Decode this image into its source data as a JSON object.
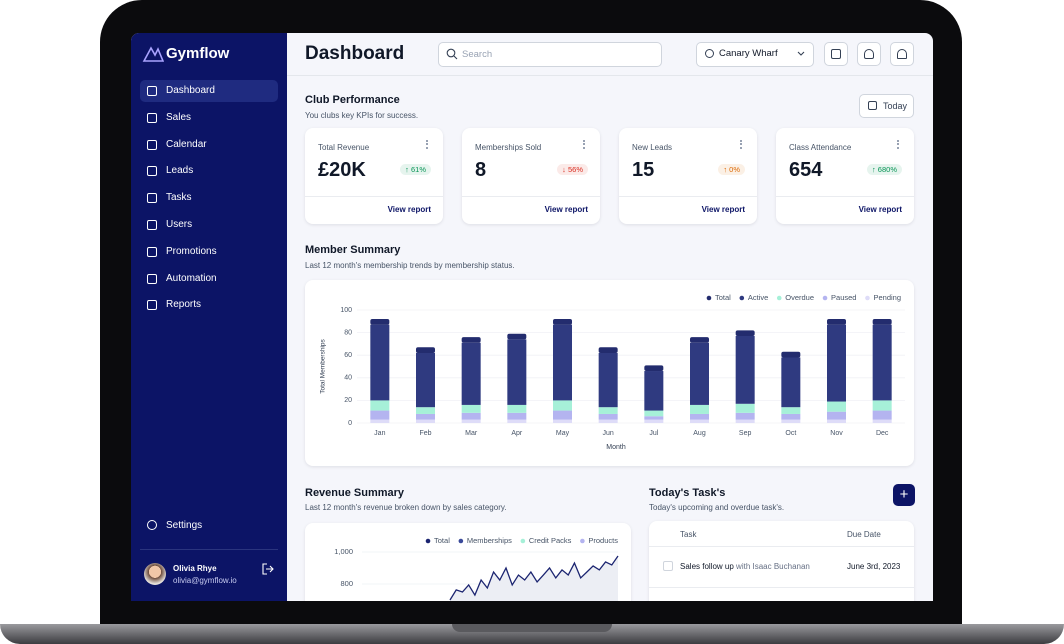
{
  "sidebar": {
    "brand": "Gymflow",
    "nav": [
      "Dashboard",
      "Sales",
      "Calendar",
      "Leads",
      "Tasks",
      "Users",
      "Promotions",
      "Automation",
      "Reports"
    ],
    "settings": "Settings",
    "user": {
      "name": "Olivia Rhye",
      "email": "olivia@gymflow.io"
    }
  },
  "header": {
    "title": "Dashboard",
    "search_placeholder": "Search",
    "location": "Canary Wharf"
  },
  "club_performance": {
    "title": "Club Performance",
    "subtitle": "You clubs key KPIs for success.",
    "period": "Today",
    "kpis": [
      {
        "label": "Total Revenue",
        "value": "£20K",
        "change": "↑ 61%",
        "change_color": "#079455",
        "link": "View report"
      },
      {
        "label": "Memberships Sold",
        "value": "8",
        "change": "↓ 56%",
        "change_color": "#d92d20",
        "link": "View report"
      },
      {
        "label": "New Leads",
        "value": "15",
        "change": "↑ 0%",
        "change_color": "#dc6803",
        "link": "View report"
      },
      {
        "label": "Class Attendance",
        "value": "654",
        "change": "↑ 680%",
        "change_color": "#079455",
        "link": "View report"
      }
    ]
  },
  "member_summary": {
    "title": "Member Summary",
    "subtitle": "Last 12 month's membership trends by membership status.",
    "chart": {
      "type": "bar",
      "stacked": true,
      "categories": [
        "Jan",
        "Feb",
        "Mar",
        "Apr",
        "May",
        "Jun",
        "Jul",
        "Aug",
        "Sep",
        "Oct",
        "Nov",
        "Dec"
      ],
      "series": [
        {
          "name": "Total",
          "color": "#232c6e",
          "values": [
            5,
            5,
            5,
            5,
            5,
            5,
            5,
            5,
            5,
            5,
            5,
            5
          ]
        },
        {
          "name": "Active",
          "color": "#2f3a80",
          "values": [
            67,
            48,
            55,
            58,
            67,
            48,
            35,
            55,
            60,
            44,
            68,
            67
          ]
        },
        {
          "name": "Overdue",
          "color": "#a6f0d8",
          "values": [
            9,
            6,
            7,
            7,
            9,
            6,
            5,
            8,
            8,
            6,
            9,
            9
          ]
        },
        {
          "name": "Paused",
          "color": "#b4b4f0",
          "values": [
            8,
            5,
            6,
            6,
            8,
            5,
            3,
            5,
            6,
            5,
            7,
            8
          ]
        },
        {
          "name": "Pending",
          "color": "#dedcf8",
          "values": [
            3,
            3,
            3,
            3,
            3,
            3,
            3,
            3,
            3,
            3,
            3,
            3
          ]
        }
      ],
      "ylim": [
        0,
        100
      ],
      "yticks": [
        0,
        20,
        40,
        60,
        80,
        100
      ],
      "grid": true,
      "y_label": "Total Memberships",
      "x_label": "Month"
    }
  },
  "revenue_summary": {
    "title": "Revenue Summary",
    "subtitle": "Last 12 month's revenue broken down by sales category.",
    "chart": {
      "type": "line",
      "legend": [
        {
          "name": "Total",
          "color": "#1b2470"
        },
        {
          "name": "Memberships",
          "color": "#3a4a9a"
        },
        {
          "name": "Credit Packs",
          "color": "#a6f0d8"
        },
        {
          "name": "Products",
          "color": "#b4b4f0"
        }
      ],
      "values": [
        700,
        763,
        750,
        794,
        731,
        825,
        775,
        875,
        825,
        900,
        794,
        856,
        825,
        875,
        813,
        856,
        900,
        838,
        888,
        856,
        931,
        838,
        875,
        913,
        888,
        938,
        919,
        975
      ],
      "color": "#1b2470",
      "ylim": [
        600,
        1000
      ],
      "yticks": [
        {
          "value": 1000,
          "label": "1,000"
        },
        800
      ],
      "grid": true
    }
  },
  "tasks": {
    "title": "Today's Task's",
    "subtitle": "Today's upcoming and overdue task's.",
    "columns": [
      "Task",
      "Due Date"
    ],
    "rows": [
      {
        "task": "Sales follow up",
        "assignee": "with Isaac Buchanan",
        "due": "June 3rd, 2023"
      }
    ]
  }
}
